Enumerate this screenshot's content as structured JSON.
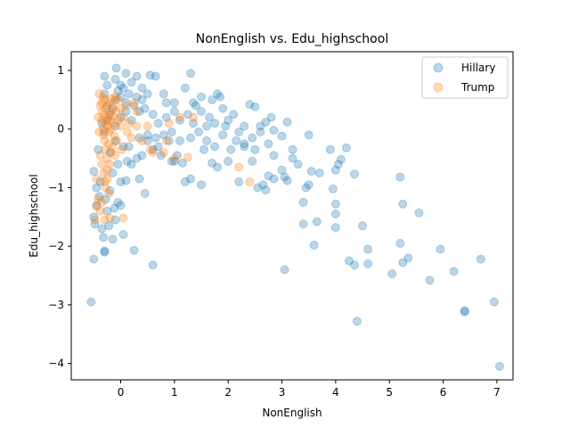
{
  "chart_data": {
    "type": "scatter",
    "title": "NonEnglish vs. Edu_highschool",
    "xlabel": "NonEnglish",
    "ylabel": "Edu_highschool",
    "xlim": [
      -0.92,
      7.3
    ],
    "ylim": [
      -4.28,
      1.32
    ],
    "xticks": [
      0,
      1,
      2,
      3,
      4,
      5,
      6,
      7
    ],
    "yticks": [
      1,
      0,
      -1,
      -2,
      -3,
      -4
    ],
    "legend_position": "top-right",
    "series": [
      {
        "name": "Hillary",
        "color": "#1f77b4",
        "points": [
          [
            -0.55,
            -2.95
          ],
          [
            -0.5,
            -2.22
          ],
          [
            -0.48,
            -1.62
          ],
          [
            -0.5,
            -1.5
          ],
          [
            -0.45,
            -1.3
          ],
          [
            -0.4,
            -1.15
          ],
          [
            -0.45,
            -1.0
          ],
          [
            -0.38,
            -0.9
          ],
          [
            -0.5,
            -0.72
          ],
          [
            -0.42,
            -0.35
          ],
          [
            -0.35,
            -1.7
          ],
          [
            -0.32,
            -1.85
          ],
          [
            -0.3,
            -2.08
          ],
          [
            -0.3,
            -2.1
          ],
          [
            -0.22,
            -1.65
          ],
          [
            -0.25,
            -1.4
          ],
          [
            -0.28,
            -1.2
          ],
          [
            -0.2,
            -1.05
          ],
          [
            -0.15,
            -1.88
          ],
          [
            -0.1,
            -1.55
          ],
          [
            -0.12,
            -1.35
          ],
          [
            -0.05,
            -1.25
          ],
          [
            0.0,
            -1.3
          ],
          [
            0.05,
            -1.8
          ],
          [
            0.25,
            -2.07
          ],
          [
            0.6,
            -2.32
          ],
          [
            0.1,
            -0.88
          ],
          [
            0.2,
            -0.6
          ],
          [
            0.3,
            -0.5
          ],
          [
            0.0,
            -0.9
          ],
          [
            -0.2,
            -0.4
          ],
          [
            -0.1,
            -0.2
          ],
          [
            -0.05,
            -0.6
          ],
          [
            0.15,
            -0.3
          ],
          [
            0.35,
            -0.15
          ],
          [
            0.4,
            -0.45
          ],
          [
            0.5,
            -0.2
          ],
          [
            0.6,
            -0.35
          ],
          [
            0.8,
            -0.1
          ],
          [
            0.95,
            -0.05
          ],
          [
            -0.3,
            0.6
          ],
          [
            -0.25,
            0.4
          ],
          [
            -0.2,
            0.25
          ],
          [
            -0.15,
            0.35
          ],
          [
            -0.1,
            0.5
          ],
          [
            -0.05,
            0.65
          ],
          [
            0.0,
            0.55
          ],
          [
            0.05,
            0.7
          ],
          [
            0.1,
            0.45
          ],
          [
            0.15,
            0.6
          ],
          [
            -0.35,
            0.1
          ],
          [
            -0.3,
            -0.05
          ],
          [
            -0.25,
            0.15
          ],
          [
            -0.1,
            0.05
          ],
          [
            0.0,
            0.2
          ],
          [
            0.1,
            0.3
          ],
          [
            0.2,
            0.15
          ],
          [
            0.25,
            0.4
          ],
          [
            0.3,
            0.55
          ],
          [
            0.35,
            0.3
          ],
          [
            -0.3,
            0.9
          ],
          [
            -0.25,
            0.75
          ],
          [
            -0.1,
            0.85
          ],
          [
            0.0,
            0.75
          ],
          [
            0.1,
            0.95
          ],
          [
            0.2,
            0.8
          ],
          [
            0.3,
            0.9
          ],
          [
            0.4,
            0.7
          ],
          [
            0.5,
            0.6
          ],
          [
            -0.08,
            1.04
          ],
          [
            0.55,
            0.92
          ],
          [
            0.65,
            0.9
          ],
          [
            0.8,
            0.6
          ],
          [
            1.0,
            0.45
          ],
          [
            1.2,
            0.7
          ],
          [
            1.3,
            0.95
          ],
          [
            1.5,
            0.55
          ],
          [
            1.7,
            0.5
          ],
          [
            1.8,
            0.6
          ],
          [
            1.85,
            0.55
          ],
          [
            0.45,
            0.35
          ],
          [
            0.6,
            0.25
          ],
          [
            0.7,
            0.1
          ],
          [
            0.85,
            0.2
          ],
          [
            1.0,
            0.3
          ],
          [
            1.1,
            0.15
          ],
          [
            1.25,
            0.25
          ],
          [
            1.4,
            0.4
          ],
          [
            1.5,
            0.3
          ],
          [
            1.65,
            0.2
          ],
          [
            1.75,
            0.1
          ],
          [
            1.9,
            0.35
          ],
          [
            2.0,
            0.15
          ],
          [
            2.1,
            0.25
          ],
          [
            2.3,
            0.05
          ],
          [
            2.4,
            0.42
          ],
          [
            2.5,
            0.38
          ],
          [
            2.6,
            0.05
          ],
          [
            2.7,
            0.12
          ],
          [
            2.8,
            0.2
          ],
          [
            0.5,
            -0.1
          ],
          [
            0.7,
            -0.3
          ],
          [
            0.9,
            -0.2
          ],
          [
            1.05,
            -0.45
          ],
          [
            1.15,
            -0.58
          ],
          [
            1.3,
            -0.15
          ],
          [
            1.45,
            -0.05
          ],
          [
            1.6,
            -0.2
          ],
          [
            1.75,
            -0.3
          ],
          [
            1.9,
            -0.1
          ],
          [
            2.05,
            -0.35
          ],
          [
            2.2,
            -0.05
          ],
          [
            2.3,
            -0.25
          ],
          [
            2.45,
            -0.15
          ],
          [
            2.6,
            -0.05
          ],
          [
            2.75,
            -0.25
          ],
          [
            2.85,
            -0.02
          ],
          [
            3.0,
            -0.12
          ],
          [
            3.1,
            0.12
          ],
          [
            3.2,
            -0.35
          ],
          [
            1.0,
            -0.55
          ],
          [
            1.2,
            -0.9
          ],
          [
            1.3,
            -0.85
          ],
          [
            1.5,
            -0.95
          ],
          [
            1.7,
            -0.58
          ],
          [
            1.8,
            -0.65
          ],
          [
            2.0,
            -0.55
          ],
          [
            2.2,
            -0.9
          ],
          [
            2.3,
            -0.3
          ],
          [
            2.45,
            -0.55
          ],
          [
            2.55,
            -1.0
          ],
          [
            2.65,
            -0.95
          ],
          [
            2.7,
            -1.04
          ],
          [
            2.75,
            -0.8
          ],
          [
            2.85,
            -0.85
          ],
          [
            3.0,
            -0.7
          ],
          [
            3.05,
            -0.82
          ],
          [
            3.1,
            -0.88
          ],
          [
            3.2,
            -0.5
          ],
          [
            3.3,
            -0.6
          ],
          [
            3.4,
            -1.25
          ],
          [
            3.45,
            -1.0
          ],
          [
            3.5,
            -0.95
          ],
          [
            3.55,
            -0.72
          ],
          [
            3.6,
            -1.98
          ],
          [
            3.65,
            -1.58
          ],
          [
            3.4,
            -1.62
          ],
          [
            3.7,
            -0.75
          ],
          [
            3.5,
            -0.1
          ],
          [
            3.05,
            -2.4
          ],
          [
            3.9,
            -0.35
          ],
          [
            4.0,
            -0.7
          ],
          [
            4.05,
            -0.6
          ],
          [
            4.1,
            -0.52
          ],
          [
            4.2,
            -0.32
          ],
          [
            3.95,
            -1.02
          ],
          [
            4.0,
            -1.28
          ],
          [
            4.0,
            -1.45
          ],
          [
            4.0,
            -1.68
          ],
          [
            4.35,
            -0.77
          ],
          [
            4.25,
            -2.25
          ],
          [
            4.35,
            -2.32
          ],
          [
            4.4,
            -3.28
          ],
          [
            4.5,
            -1.65
          ],
          [
            4.6,
            -2.05
          ],
          [
            4.6,
            -2.3
          ],
          [
            5.05,
            -2.47
          ],
          [
            5.2,
            -1.95
          ],
          [
            5.25,
            -2.28
          ],
          [
            5.35,
            -2.2
          ],
          [
            5.2,
            -0.82
          ],
          [
            5.25,
            -1.28
          ],
          [
            5.55,
            -1.43
          ],
          [
            5.75,
            -2.58
          ],
          [
            5.95,
            -2.05
          ],
          [
            6.2,
            -2.43
          ],
          [
            6.4,
            -3.1
          ],
          [
            6.4,
            -3.12
          ],
          [
            6.7,
            -2.22
          ],
          [
            6.95,
            -2.95
          ],
          [
            7.05,
            -4.05
          ],
          [
            0.05,
            -0.3
          ],
          [
            -0.15,
            -0.75
          ],
          [
            0.12,
            -0.55
          ],
          [
            0.35,
            -0.85
          ],
          [
            0.45,
            -1.1
          ],
          [
            0.65,
            -0.15
          ],
          [
            0.75,
            -0.45
          ],
          [
            0.95,
            -0.55
          ],
          [
            1.1,
            -0.2
          ],
          [
            1.35,
            0.1
          ],
          [
            1.55,
            -0.35
          ],
          [
            1.95,
            0.05
          ],
          [
            2.15,
            -0.2
          ],
          [
            2.5,
            -0.35
          ],
          [
            2.85,
            -0.45
          ],
          [
            1.6,
            0.05
          ],
          [
            1.35,
            0.45
          ],
          [
            0.85,
            0.45
          ],
          [
            0.4,
            0.5
          ]
        ]
      },
      {
        "name": "Trump",
        "color": "#ff7f0e",
        "points": [
          [
            -0.4,
            0.6
          ],
          [
            -0.38,
            0.4
          ],
          [
            -0.35,
            0.3
          ],
          [
            -0.35,
            0.15
          ],
          [
            -0.33,
            0.0
          ],
          [
            -0.32,
            -0.1
          ],
          [
            -0.3,
            0.5
          ],
          [
            -0.3,
            0.25
          ],
          [
            -0.28,
            0.1
          ],
          [
            -0.27,
            0.35
          ],
          [
            -0.25,
            0.2
          ],
          [
            -0.25,
            0.05
          ],
          [
            -0.22,
            0.45
          ],
          [
            -0.22,
            -0.05
          ],
          [
            -0.2,
            0.3
          ],
          [
            -0.2,
            0.15
          ],
          [
            -0.18,
            0.0
          ],
          [
            -0.15,
            0.4
          ],
          [
            -0.15,
            0.22
          ],
          [
            -0.12,
            0.1
          ],
          [
            -0.12,
            -0.12
          ],
          [
            -0.1,
            0.55
          ],
          [
            -0.08,
            0.3
          ],
          [
            -0.05,
            0.15
          ],
          [
            -0.05,
            0.5
          ],
          [
            0.0,
            0.35
          ],
          [
            0.0,
            0.05
          ],
          [
            0.05,
            0.2
          ],
          [
            0.1,
            0.4
          ],
          [
            0.15,
            0.1
          ],
          [
            -0.3,
            -0.2
          ],
          [
            -0.28,
            -0.35
          ],
          [
            -0.25,
            -0.5
          ],
          [
            -0.22,
            -0.25
          ],
          [
            -0.18,
            -0.4
          ],
          [
            -0.15,
            -0.3
          ],
          [
            -0.1,
            -0.45
          ],
          [
            -0.35,
            -0.6
          ],
          [
            -0.32,
            -0.75
          ],
          [
            -0.3,
            -0.9
          ],
          [
            -0.28,
            -1.0
          ],
          [
            -0.25,
            -0.85
          ],
          [
            -0.22,
            -1.1
          ],
          [
            -0.35,
            -1.25
          ],
          [
            -0.38,
            -1.4
          ],
          [
            -0.42,
            -1.2
          ],
          [
            -0.45,
            -1.32
          ],
          [
            -0.3,
            -1.55
          ],
          [
            -0.48,
            -1.55
          ],
          [
            -0.2,
            -1.52
          ],
          [
            -0.25,
            -0.7
          ],
          [
            -0.2,
            -0.6
          ],
          [
            0.05,
            -1.52
          ],
          [
            0.2,
            -0.15
          ],
          [
            0.4,
            -0.2
          ],
          [
            0.55,
            -0.35
          ],
          [
            0.6,
            -0.4
          ],
          [
            0.8,
            -0.4
          ],
          [
            0.85,
            -0.2
          ],
          [
            1.0,
            -0.5
          ],
          [
            1.25,
            -0.48
          ],
          [
            1.35,
            0.2
          ],
          [
            1.1,
            0.2
          ],
          [
            0.3,
            0.3
          ],
          [
            0.25,
            0.45
          ],
          [
            0.9,
            0.1
          ],
          [
            2.2,
            -0.65
          ],
          [
            2.4,
            -0.9
          ],
          [
            -0.35,
            0.45
          ],
          [
            -0.42,
            0.2
          ],
          [
            -0.4,
            -0.05
          ],
          [
            -0.38,
            -0.45
          ],
          [
            -0.33,
            0.55
          ],
          [
            -0.17,
            0.52
          ],
          [
            -0.07,
            -0.2
          ],
          [
            0.02,
            -0.35
          ],
          [
            0.12,
            -0.05
          ],
          [
            0.3,
            0.05
          ],
          [
            0.5,
            0.05
          ],
          [
            -0.45,
            -0.85
          ]
        ]
      }
    ]
  }
}
